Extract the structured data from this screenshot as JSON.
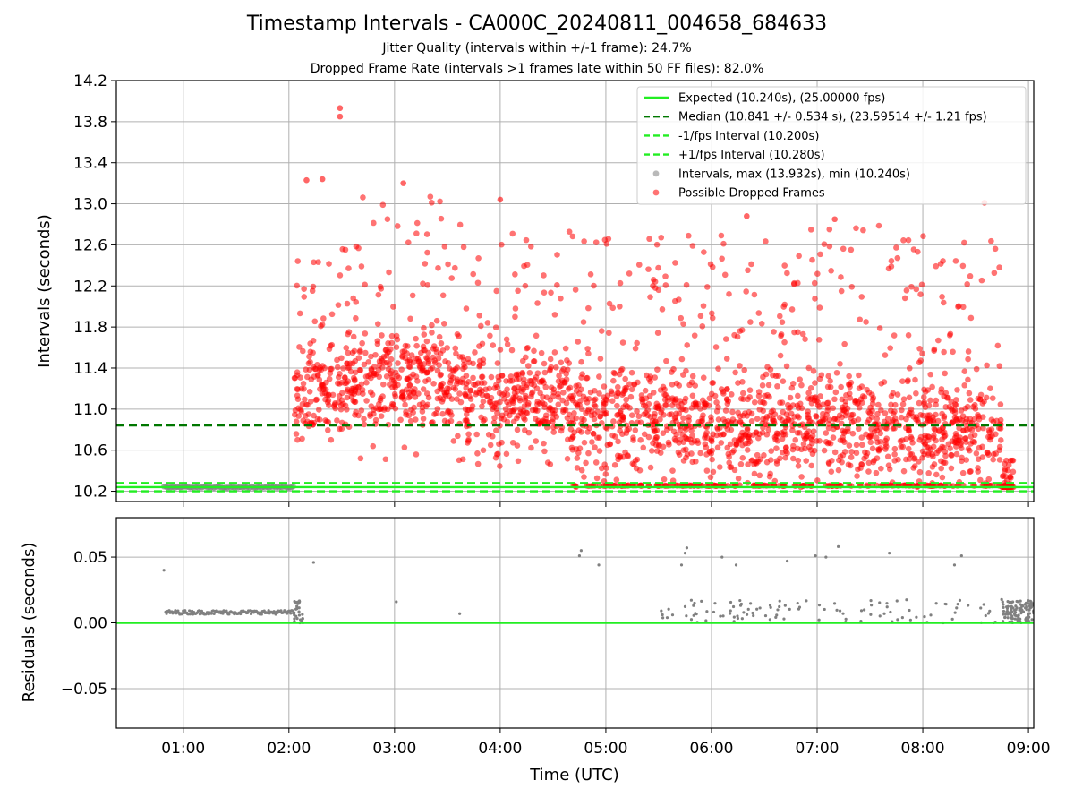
{
  "title": "Timestamp Intervals - CA000C_20240811_004658_684633",
  "subtitle_1": "Jitter Quality (intervals within +/-1 frame): 24.7%",
  "subtitle_2": "Dropped Frame Rate (intervals >1 frames late within 50 FF files): 82.0%",
  "chart_data": [
    {
      "type": "scatter",
      "ylabel": "Intervals (seconds)",
      "xlabel": "",
      "ylim": [
        10.1,
        14.2
      ],
      "y_ticks": [
        "10.2",
        "10.6",
        "11.0",
        "11.4",
        "11.8",
        "12.2",
        "12.6",
        "13.0",
        "13.4",
        "13.8",
        "14.2"
      ],
      "grid": true,
      "legend_position": "top-right",
      "reference_lines": [
        {
          "label": "Expected (10.240s), (25.00000 fps)",
          "y": 10.24,
          "style": "solid",
          "color": "#22ee22"
        },
        {
          "label": "Median (10.841 +/- 0.534 s), (23.59514 +/- 1.21 fps)",
          "y": 10.841,
          "style": "dashed",
          "color": "#007700"
        },
        {
          "label": "-1/fps Interval (10.200s)",
          "y": 10.2,
          "style": "dashed",
          "color": "#22ee22"
        },
        {
          "label": "+1/fps Interval (10.280s)",
          "y": 10.28,
          "style": "dashed",
          "color": "#22ee22"
        }
      ],
      "series": [
        {
          "name": "Intervals, max (13.932s), min (10.240s)",
          "color": "#808080",
          "segments": [
            {
              "x_start": "00:49",
              "x_end": "02:03",
              "y": 10.24,
              "spread": 0.02
            }
          ]
        },
        {
          "name": "Possible Dropped Frames",
          "color": "#ff0000",
          "notable_points": [
            {
              "x": "02:29",
              "y": 13.932
            },
            {
              "x": "02:29",
              "y": 13.85
            },
            {
              "x": "02:19",
              "y": 13.24
            },
            {
              "x": "02:10",
              "y": 13.23
            },
            {
              "x": "03:05",
              "y": 13.2
            },
            {
              "x": "04:00",
              "y": 13.04
            },
            {
              "x": "06:20",
              "y": 12.88
            },
            {
              "x": "07:10",
              "y": 12.85
            },
            {
              "x": "08:35",
              "y": 13.01
            }
          ],
          "density_profile": [
            {
              "x_start": "02:03",
              "x_end": "02:40",
              "y_min": 10.7,
              "y_max": 12.7,
              "y_center": 11.15
            },
            {
              "x_start": "02:40",
              "x_end": "03:40",
              "y_min": 10.5,
              "y_max": 13.1,
              "y_center": 11.3
            },
            {
              "x_start": "03:40",
              "x_end": "04:40",
              "y_min": 10.4,
              "y_max": 12.8,
              "y_center": 11.1
            },
            {
              "x_start": "04:40",
              "x_end": "05:40",
              "y_min": 10.24,
              "y_max": 12.7,
              "y_center": 10.95
            },
            {
              "x_start": "05:40",
              "x_end": "07:40",
              "y_min": 10.24,
              "y_max": 12.8,
              "y_center": 10.85
            },
            {
              "x_start": "07:40",
              "x_end": "08:45",
              "y_min": 10.24,
              "y_max": 12.7,
              "y_center": 10.8
            },
            {
              "x_start": "08:45",
              "x_end": "08:52",
              "y_min": 10.24,
              "y_max": 10.5,
              "y_center": 10.25
            }
          ]
        }
      ]
    },
    {
      "type": "scatter",
      "ylabel": "Residuals (seconds)",
      "xlabel": "Time (UTC)",
      "ylim": [
        -0.08,
        0.08
      ],
      "y_ticks": [
        "0.05",
        "0.00",
        "−0.05"
      ],
      "x_ticks": [
        "01:00",
        "02:00",
        "03:00",
        "04:00",
        "05:00",
        "06:00",
        "07:00",
        "08:00",
        "09:00"
      ],
      "xlim": [
        "00:22",
        "09:03"
      ],
      "grid": true,
      "reference_line": {
        "y": 0.0,
        "color": "#22ee22"
      },
      "series": [
        {
          "name": "",
          "color": "#808080",
          "segments": [
            {
              "x_start": "00:50",
              "x_end": "02:03",
              "y": 0.008
            }
          ],
          "points": [
            {
              "x": "00:49",
              "y": 0.04
            },
            {
              "x": "02:14",
              "y": 0.046
            },
            {
              "x": "03:01",
              "y": 0.016
            },
            {
              "x": "03:37",
              "y": 0.007
            },
            {
              "x": "04:46",
              "y": 0.055
            },
            {
              "x": "04:45",
              "y": 0.051
            },
            {
              "x": "04:56",
              "y": 0.044
            },
            {
              "x": "05:46",
              "y": 0.057
            },
            {
              "x": "05:45",
              "y": 0.053
            },
            {
              "x": "05:43",
              "y": 0.044
            },
            {
              "x": "06:06",
              "y": 0.05
            },
            {
              "x": "06:14",
              "y": 0.044
            },
            {
              "x": "06:43",
              "y": 0.047
            },
            {
              "x": "06:59",
              "y": 0.051
            },
            {
              "x": "07:05",
              "y": 0.05
            },
            {
              "x": "07:12",
              "y": 0.058
            },
            {
              "x": "07:41",
              "y": 0.053
            },
            {
              "x": "08:18",
              "y": 0.044
            },
            {
              "x": "08:22",
              "y": 0.051
            }
          ]
        }
      ]
    }
  ],
  "legend": {
    "items": [
      {
        "label": "Expected (10.240s), (25.00000 fps)",
        "kind": "line-solid",
        "color": "#22ee22"
      },
      {
        "label": "Median (10.841 +/- 0.534 s), (23.59514 +/- 1.21 fps)",
        "kind": "line-dashed",
        "color": "#007700"
      },
      {
        "label": "-1/fps Interval (10.200s)",
        "kind": "line-dashed",
        "color": "#22ee22"
      },
      {
        "label": "+1/fps Interval (10.280s)",
        "kind": "line-dashed",
        "color": "#22ee22"
      },
      {
        "label": "Intervals, max (13.932s), min (10.240s)",
        "kind": "marker",
        "color": "#808080"
      },
      {
        "label": "Possible Dropped Frames",
        "kind": "marker",
        "color": "#ff0000"
      }
    ]
  }
}
